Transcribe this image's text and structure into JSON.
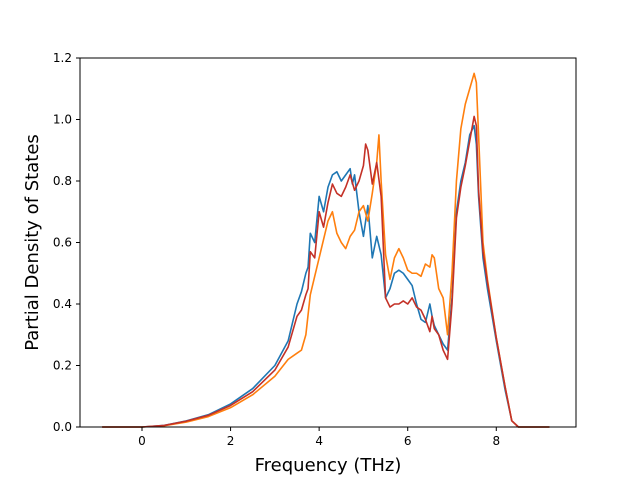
{
  "chart_data": {
    "type": "line",
    "title": "",
    "xlabel": "Frequency (THz)",
    "ylabel": "Partial Density of States",
    "xlim": [
      -1.4,
      9.8
    ],
    "ylim": [
      0.0,
      1.2
    ],
    "xticks": [
      0,
      2,
      4,
      6,
      8
    ],
    "xtick_labels": [
      "0",
      "2",
      "4",
      "6",
      "8"
    ],
    "yticks": [
      0.0,
      0.2,
      0.4,
      0.6,
      0.8,
      1.0,
      1.2
    ],
    "ytick_labels": [
      "0.0",
      "0.2",
      "0.4",
      "0.6",
      "0.8",
      "1.0",
      "1.2"
    ],
    "grid": false,
    "legend": "none",
    "series": [
      {
        "color": "#1f77b4",
        "x": [
          -0.9,
          -0.5,
          0.0,
          0.5,
          1.0,
          1.5,
          2.0,
          2.5,
          3.0,
          3.3,
          3.5,
          3.6,
          3.7,
          3.75,
          3.8,
          3.9,
          4.0,
          4.1,
          4.2,
          4.3,
          4.4,
          4.5,
          4.6,
          4.7,
          4.75,
          4.8,
          4.9,
          5.0,
          5.1,
          5.2,
          5.3,
          5.4,
          5.5,
          5.6,
          5.7,
          5.8,
          5.9,
          6.0,
          6.1,
          6.2,
          6.3,
          6.4,
          6.5,
          6.55,
          6.6,
          6.7,
          6.8,
          6.9,
          7.0,
          7.1,
          7.2,
          7.3,
          7.4,
          7.5,
          7.55,
          7.6,
          7.7,
          7.8,
          8.0,
          8.2,
          8.35,
          8.5,
          9.2
        ],
        "y": [
          0.0,
          0.0,
          0.0,
          0.005,
          0.02,
          0.04,
          0.075,
          0.125,
          0.2,
          0.28,
          0.4,
          0.44,
          0.5,
          0.52,
          0.63,
          0.6,
          0.75,
          0.7,
          0.78,
          0.82,
          0.83,
          0.8,
          0.82,
          0.84,
          0.79,
          0.82,
          0.7,
          0.62,
          0.72,
          0.55,
          0.62,
          0.56,
          0.42,
          0.45,
          0.5,
          0.51,
          0.5,
          0.48,
          0.46,
          0.4,
          0.35,
          0.34,
          0.4,
          0.36,
          0.33,
          0.3,
          0.27,
          0.25,
          0.42,
          0.7,
          0.8,
          0.86,
          0.95,
          0.98,
          0.92,
          0.75,
          0.55,
          0.45,
          0.28,
          0.12,
          0.02,
          0.0,
          0.0
        ]
      },
      {
        "color": "#ff7f0e",
        "x": [
          -0.9,
          -0.5,
          0.0,
          0.5,
          1.0,
          1.5,
          2.0,
          2.5,
          3.0,
          3.3,
          3.5,
          3.6,
          3.7,
          3.8,
          3.9,
          4.0,
          4.1,
          4.2,
          4.3,
          4.4,
          4.5,
          4.6,
          4.7,
          4.8,
          4.9,
          5.0,
          5.1,
          5.2,
          5.3,
          5.35,
          5.4,
          5.45,
          5.5,
          5.6,
          5.7,
          5.8,
          5.9,
          6.0,
          6.1,
          6.2,
          6.3,
          6.4,
          6.5,
          6.55,
          6.6,
          6.7,
          6.8,
          6.9,
          7.0,
          7.1,
          7.2,
          7.3,
          7.4,
          7.5,
          7.55,
          7.6,
          7.7,
          7.8,
          8.0,
          8.2,
          8.35,
          8.5,
          9.2
        ],
        "y": [
          0.0,
          0.0,
          0.0,
          0.004,
          0.016,
          0.034,
          0.063,
          0.105,
          0.165,
          0.22,
          0.24,
          0.25,
          0.3,
          0.43,
          0.49,
          0.55,
          0.61,
          0.67,
          0.7,
          0.63,
          0.6,
          0.58,
          0.62,
          0.64,
          0.7,
          0.72,
          0.67,
          0.76,
          0.86,
          0.95,
          0.8,
          0.68,
          0.56,
          0.48,
          0.55,
          0.58,
          0.55,
          0.51,
          0.5,
          0.5,
          0.49,
          0.53,
          0.52,
          0.56,
          0.55,
          0.45,
          0.42,
          0.3,
          0.5,
          0.8,
          0.97,
          1.05,
          1.1,
          1.15,
          1.12,
          0.95,
          0.6,
          0.48,
          0.29,
          0.13,
          0.02,
          0.0,
          0.0
        ]
      },
      {
        "color": "#c43127",
        "x": [
          -0.9,
          -0.5,
          0.0,
          0.5,
          1.0,
          1.5,
          2.0,
          2.5,
          3.0,
          3.3,
          3.5,
          3.6,
          3.7,
          3.75,
          3.8,
          3.9,
          4.0,
          4.1,
          4.2,
          4.3,
          4.4,
          4.5,
          4.6,
          4.7,
          4.8,
          4.9,
          5.0,
          5.05,
          5.1,
          5.2,
          5.3,
          5.4,
          5.5,
          5.6,
          5.7,
          5.8,
          5.9,
          6.0,
          6.1,
          6.2,
          6.3,
          6.4,
          6.5,
          6.55,
          6.6,
          6.7,
          6.8,
          6.9,
          7.0,
          7.1,
          7.2,
          7.3,
          7.4,
          7.5,
          7.55,
          7.6,
          7.7,
          7.8,
          8.0,
          8.2,
          8.35,
          8.5,
          9.2
        ],
        "y": [
          0.0,
          0.0,
          0.0,
          0.005,
          0.019,
          0.038,
          0.07,
          0.115,
          0.185,
          0.26,
          0.36,
          0.38,
          0.43,
          0.45,
          0.57,
          0.55,
          0.7,
          0.65,
          0.73,
          0.79,
          0.76,
          0.75,
          0.78,
          0.82,
          0.77,
          0.8,
          0.85,
          0.92,
          0.9,
          0.79,
          0.86,
          0.75,
          0.42,
          0.39,
          0.4,
          0.4,
          0.41,
          0.4,
          0.42,
          0.39,
          0.38,
          0.35,
          0.31,
          0.36,
          0.32,
          0.3,
          0.25,
          0.22,
          0.4,
          0.68,
          0.78,
          0.85,
          0.93,
          1.01,
          0.98,
          0.77,
          0.57,
          0.47,
          0.29,
          0.13,
          0.02,
          0.0,
          0.0
        ]
      }
    ]
  }
}
